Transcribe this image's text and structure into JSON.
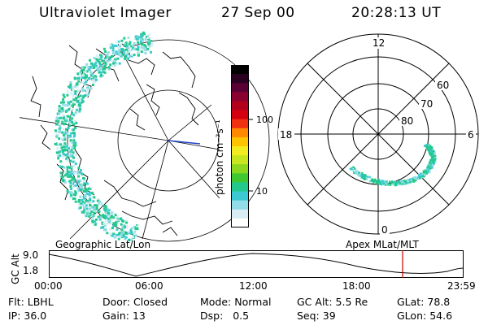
{
  "header": {
    "title": "Ultraviolet Imager",
    "date": "27 Sep 00",
    "time": "20:28:13 UT"
  },
  "left_panel": {
    "label": "Geographic Lat/Lon"
  },
  "colorbar": {
    "unit_label": "photon cm⁻²s⁻¹",
    "ticks": [
      "100",
      "10"
    ],
    "colors": [
      "#000000",
      "#2a0020",
      "#5a0035",
      "#8a0030",
      "#b0001a",
      "#d40010",
      "#f03010",
      "#ff8a00",
      "#ffc400",
      "#f2ec20",
      "#c8e620",
      "#8cd81e",
      "#40c832",
      "#22c88c",
      "#3ccad2",
      "#90dce8",
      "#d8eef4",
      "#ffffff"
    ]
  },
  "right_panel": {
    "label": "Apex MLat/MLT",
    "mlt_labels": {
      "top": "12",
      "left": "18",
      "right": "6",
      "bottom": "0"
    },
    "lat_labels": [
      "60",
      "70",
      "80"
    ]
  },
  "altitude_plot": {
    "axis_label": "GC Alt",
    "y_ticks": [
      "9.0",
      "1.8"
    ],
    "x_ticks": [
      "00:00",
      "06:00",
      "12:00",
      "18:00",
      "23:59"
    ],
    "marker_time_hours": 20.47
  },
  "info": {
    "row1": [
      {
        "label": "Flt:",
        "value": "LBHL"
      },
      {
        "label": "Door:",
        "value": "Closed"
      },
      {
        "label": "Mode:",
        "value": "Normal"
      },
      {
        "label": "GC Alt:",
        "value": "5.5 Re"
      },
      {
        "label": "GLat:",
        "value": "78.8"
      }
    ],
    "row2": [
      {
        "label": "IP:",
        "value": "36.0"
      },
      {
        "label": "Gain:",
        "value": "13"
      },
      {
        "label": "Dsp:",
        "value": "0.5"
      },
      {
        "label": "Seq:",
        "value": "39"
      },
      {
        "label": "GLon:",
        "value": "54.6"
      }
    ]
  },
  "colors": {
    "aurora_bright": "#22c88c",
    "aurora_mid": "#3ccad2",
    "aurora_faint": "#90dce8",
    "marker": "#cc0000",
    "meridian": "#2244cc"
  }
}
